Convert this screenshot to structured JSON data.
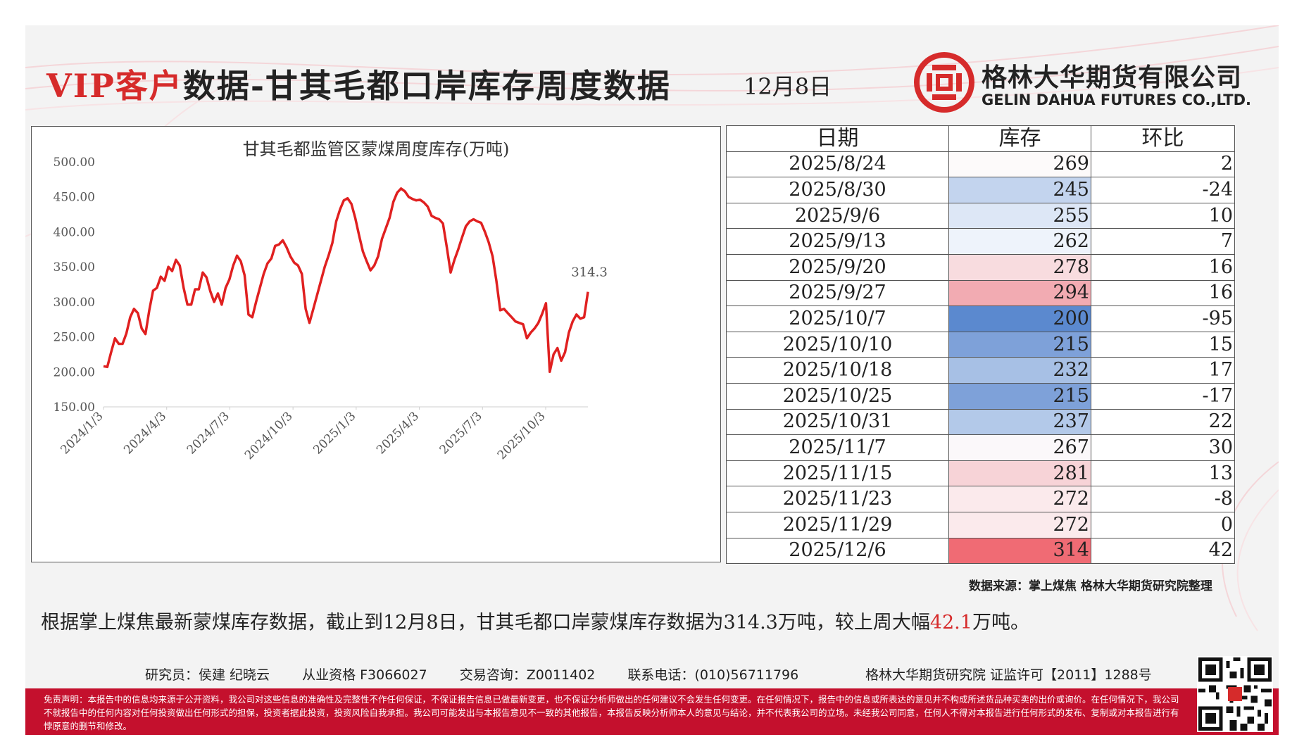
{
  "header": {
    "title_prefix": "VIP客户",
    "title_main": "数据-甘其毛都口岸库存周度数据",
    "date": "12月8日",
    "company_cn": "格林大华期货有限公司",
    "company_en": "GELIN DAHUA FUTURES CO.,LTD."
  },
  "chart_data": {
    "type": "line",
    "title": "甘其毛都监管区蒙煤周度库存(万吨)",
    "ylim": [
      150,
      500
    ],
    "yticks": [
      "150.00",
      "200.00",
      "250.00",
      "300.00",
      "350.00",
      "400.00",
      "450.00",
      "500.00"
    ],
    "xticks": [
      "2024/1/3",
      "2024/4/3",
      "2024/7/3",
      "2024/10/3",
      "2025/1/3",
      "2025/4/3",
      "2025/7/3",
      "2025/10/3"
    ],
    "last_label": "314.3",
    "color": "#e02020",
    "series": [
      {
        "values": [
          208,
          207,
          228,
          248,
          240,
          240,
          255,
          278,
          290,
          284,
          262,
          254,
          288,
          316,
          320,
          336,
          330,
          350,
          344,
          360,
          352,
          320,
          296,
          296,
          318,
          318,
          342,
          335,
          315,
          300,
          312,
          296,
          320,
          332,
          352,
          366,
          358,
          338,
          282,
          278,
          300,
          320,
          340,
          355,
          362,
          380,
          382,
          388,
          378,
          365,
          356,
          352,
          340,
          290,
          270,
          290,
          310,
          330,
          350,
          366,
          384,
          415,
          432,
          445,
          448,
          440,
          420,
          395,
          372,
          358,
          345,
          352,
          365,
          390,
          405,
          420,
          443,
          456,
          462,
          458,
          450,
          447,
          445,
          446,
          442,
          436,
          423,
          420,
          418,
          412,
          378,
          342,
          360,
          375,
          392,
          408,
          415,
          418,
          415,
          413,
          400,
          385,
          365,
          330,
          288,
          290,
          284,
          278,
          272,
          270,
          268,
          248,
          256,
          262,
          270,
          283,
          298,
          200,
          225,
          234,
          216,
          228,
          256,
          272,
          282,
          276,
          278,
          314.3
        ]
      }
    ]
  },
  "table": {
    "headers": [
      "日期",
      "库存",
      "环比"
    ],
    "rows": [
      {
        "date": "2025/8/24",
        "stock": "269",
        "change": "2",
        "color": "#fdfafa"
      },
      {
        "date": "2025/8/30",
        "stock": "245",
        "change": "-24",
        "color": "#c3d4ee"
      },
      {
        "date": "2025/9/6",
        "stock": "255",
        "change": "10",
        "color": "#dde7f6"
      },
      {
        "date": "2025/9/13",
        "stock": "262",
        "change": "7",
        "color": "#eef3fb"
      },
      {
        "date": "2025/9/20",
        "stock": "278",
        "change": "16",
        "color": "#f8dcdf"
      },
      {
        "date": "2025/9/27",
        "stock": "294",
        "change": "16",
        "color": "#f2abb2"
      },
      {
        "date": "2025/10/7",
        "stock": "200",
        "change": "-95",
        "color": "#5b89cf"
      },
      {
        "date": "2025/10/10",
        "stock": "215",
        "change": "15",
        "color": "#7ea1d9"
      },
      {
        "date": "2025/10/18",
        "stock": "232",
        "change": "17",
        "color": "#a7c0e5"
      },
      {
        "date": "2025/10/25",
        "stock": "215",
        "change": "-17",
        "color": "#7ea1d9"
      },
      {
        "date": "2025/10/31",
        "stock": "237",
        "change": "22",
        "color": "#b3c9e9"
      },
      {
        "date": "2025/11/7",
        "stock": "267",
        "change": "30",
        "color": "#fbf8fa"
      },
      {
        "date": "2025/11/15",
        "stock": "281",
        "change": "13",
        "color": "#f7d3d7"
      },
      {
        "date": "2025/11/23",
        "stock": "272",
        "change": "-8",
        "color": "#fbeaec"
      },
      {
        "date": "2025/11/29",
        "stock": "272",
        "change": "0",
        "color": "#fbeaec"
      },
      {
        "date": "2025/12/6",
        "stock": "314",
        "change": "42",
        "color": "#f06b74"
      }
    ]
  },
  "source": "数据来源：掌上煤焦 格林大华期货研究院整理",
  "summary": {
    "text_before": "根据掌上煤焦最新蒙煤库存数据，截止到12月8日，甘其毛都口岸蒙煤库存数据为314.3万吨，较上周大幅",
    "highlight": "42.1",
    "text_after": "万吨。"
  },
  "footer": {
    "researcher": "研究员：侯建 纪晓云",
    "qualification": "从业资格 F3066027",
    "consult": "交易咨询：Z0011402",
    "phone": "联系电话：(010)56711796",
    "institute": "格林大华期货研究院 证监许可【2011】1288号"
  },
  "disclaimer": "免责声明：本报告中的信息均来源于公开资料，我公司对这些信息的准确性及完整性不作任何保证，不保证报告信息已做最新变更，也不保证分析师做出的任何建议不会发生任何变更。在任何情况下，报告中的信息或所表达的意见并不构成所述货品种买卖的出价或询价。在任何情况下，我公司不就报告中的任何内容对任何投资做出任何形式的担保，投资者据此投资，投资风险自我承担。我公司可能发出与本报告意见不一致的其他报告，本报告反映分析师本人的意见与结论，并不代表我公司的立场。未经我公司同意，任何人不得对本报告进行任何形式的发布、复制或对本报告进行有悖原意的删节和修改。"
}
